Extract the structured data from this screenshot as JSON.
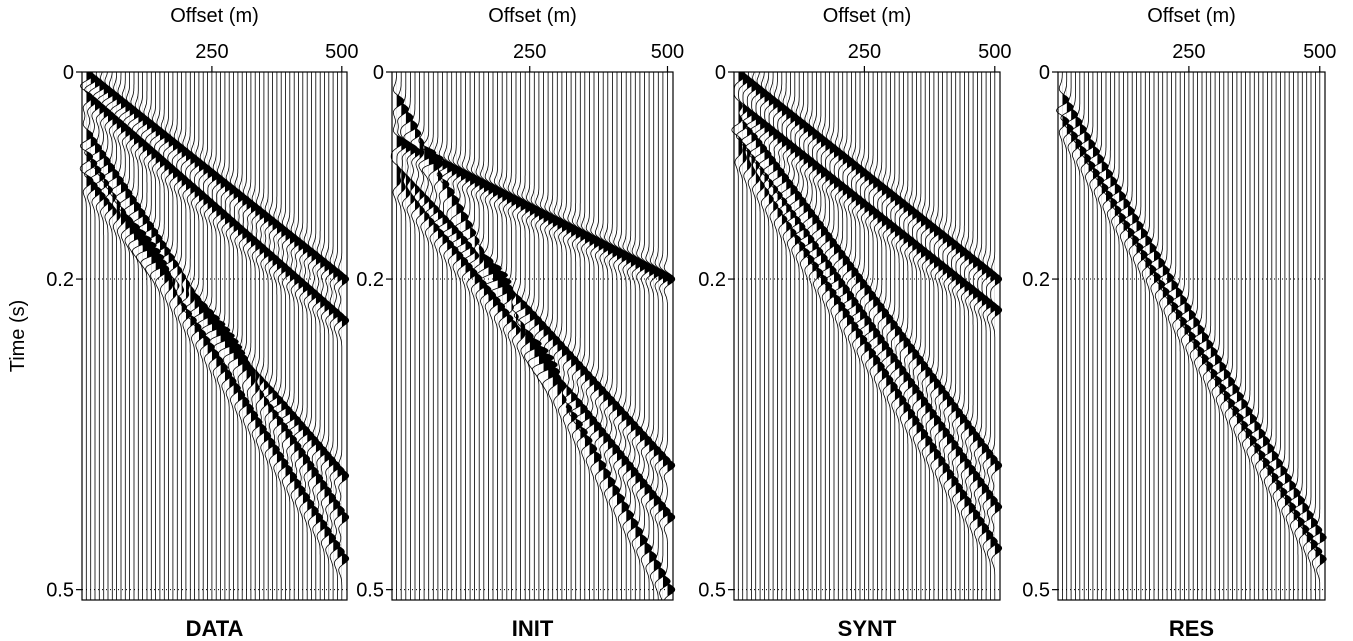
{
  "chart_data": [
    {
      "type": "wiggle",
      "title": "DATA",
      "x_label": "Offset (m)",
      "y_label": "Time (s)",
      "xlim": [
        0,
        510
      ],
      "xticks": [
        250,
        500
      ],
      "ylim": [
        0,
        0.51
      ],
      "yticks": [
        0,
        0.2,
        0.5
      ],
      "grid": true,
      "color": "#000000",
      "events": [
        [
          0.0,
          0.2
        ],
        [
          0.02,
          0.24
        ],
        [
          0.055,
          0.43
        ],
        [
          0.075,
          0.47
        ],
        [
          0.1,
          0.39
        ]
      ]
    },
    {
      "type": "wiggle",
      "title": "INIT",
      "x_label": "Offset (m)",
      "xlim": [
        0,
        510
      ],
      "xticks": [
        250,
        500
      ],
      "ylim": [
        0,
        0.51
      ],
      "yticks": [
        0,
        0.2,
        0.5
      ],
      "grid": true,
      "color": "#000000",
      "events": [
        [
          0.065,
          0.2
        ],
        [
          0.09,
          0.38
        ],
        [
          0.1,
          0.43
        ],
        [
          0.02,
          0.5
        ]
      ]
    },
    {
      "type": "wiggle",
      "title": "SYNT",
      "x_label": "Offset (m)",
      "xlim": [
        0,
        510
      ],
      "xticks": [
        250,
        500
      ],
      "ylim": [
        0,
        0.51
      ],
      "yticks": [
        0,
        0.2,
        0.5
      ],
      "grid": true,
      "color": "#000000",
      "events": [
        [
          0.0,
          0.2
        ],
        [
          0.03,
          0.23
        ],
        [
          0.04,
          0.38
        ],
        [
          0.06,
          0.42
        ],
        [
          0.07,
          0.46
        ]
      ]
    },
    {
      "type": "wiggle",
      "title": "RES",
      "x_label": "Offset (m)",
      "xlim": [
        0,
        510
      ],
      "xticks": [
        250,
        500
      ],
      "ylim": [
        0,
        0.51
      ],
      "yticks": [
        0,
        0.2,
        0.5
      ],
      "grid": true,
      "color": "#000000",
      "events": [
        [
          0.02,
          0.45
        ],
        [
          0.04,
          0.47
        ]
      ]
    }
  ]
}
